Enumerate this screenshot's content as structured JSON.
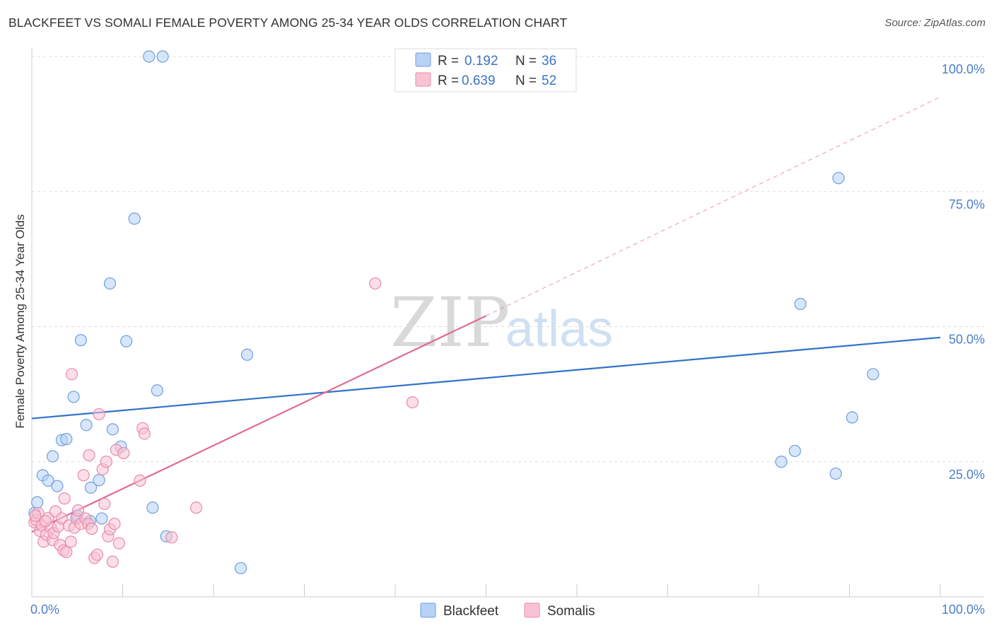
{
  "header": {
    "title": "BLACKFEET VS SOMALI FEMALE POVERTY AMONG 25-34 YEAR OLDS CORRELATION CHART",
    "source": "Source: ZipAtlas.com"
  },
  "watermark": {
    "zip": "ZIP",
    "atlas": "atlas"
  },
  "colors": {
    "blackfeet_fill": "#b7d2f5",
    "blackfeet_stroke": "#6f9fdc",
    "blackfeet_line": "#2f72c9",
    "somalis_fill": "#f7c3d3",
    "somalis_stroke": "#e98aa8",
    "somalis_line": "#e06a92",
    "grid": "#dddddd",
    "axis_text": "#4a7fc9"
  },
  "legend": {
    "rows": [
      {
        "r_label": "R =",
        "r_value": "0.192",
        "n_label": "N =",
        "n_value": "36"
      },
      {
        "r_label": "R =",
        "r_value": "0.639",
        "n_label": "N =",
        "n_value": "52"
      }
    ]
  },
  "chart_data": {
    "type": "scatter",
    "title": "BLACKFEET VS SOMALI FEMALE POVERTY AMONG 25-34 YEAR OLDS CORRELATION CHART",
    "xlabel": "",
    "ylabel": "Female Poverty Among 25-34 Year Olds",
    "xlim": [
      0,
      100
    ],
    "ylim": [
      0,
      100
    ],
    "x_tick_labels": [
      "0.0%",
      "100.0%"
    ],
    "y_ticks": [
      {
        "value": 25,
        "label": "25.0%"
      },
      {
        "value": 50,
        "label": "50.0%"
      },
      {
        "value": 75,
        "label": "75.0%"
      },
      {
        "value": 100,
        "label": "100.0%"
      }
    ],
    "series": [
      {
        "name": "Blackfeet",
        "R": 0.192,
        "N": 36,
        "trend": {
          "x0": 0,
          "y0": 33,
          "x1": 100,
          "y1": 48
        },
        "points": [
          [
            0.3,
            15.5
          ],
          [
            0.6,
            17.5
          ],
          [
            1.2,
            22.5
          ],
          [
            1.8,
            21.5
          ],
          [
            2.3,
            26
          ],
          [
            2.8,
            20.5
          ],
          [
            3.3,
            29
          ],
          [
            3.8,
            29.2
          ],
          [
            4.6,
            37
          ],
          [
            4.9,
            14.5
          ],
          [
            5.4,
            47.5
          ],
          [
            6.0,
            31.8
          ],
          [
            6.5,
            20.2
          ],
          [
            6.4,
            14.0
          ],
          [
            7.4,
            21.6
          ],
          [
            7.7,
            14.5
          ],
          [
            8.6,
            58
          ],
          [
            8.9,
            31
          ],
          [
            9.8,
            27.8
          ],
          [
            10.4,
            47.3
          ],
          [
            11.3,
            70
          ],
          [
            12.9,
            100
          ],
          [
            14.4,
            100
          ],
          [
            13.3,
            16.5
          ],
          [
            13.8,
            38.2
          ],
          [
            14.8,
            11.2
          ],
          [
            23.0,
            5.3
          ],
          [
            23.7,
            44.8
          ],
          [
            82.5,
            25
          ],
          [
            84.0,
            27
          ],
          [
            84.6,
            54.2
          ],
          [
            88.5,
            22.8
          ],
          [
            88.8,
            77.5
          ],
          [
            90.3,
            33.2
          ],
          [
            92.6,
            41.2
          ],
          [
            5.0,
            15.0
          ]
        ]
      },
      {
        "name": "Somalis",
        "R": 0.639,
        "N": 52,
        "trend": {
          "x0": 0,
          "y0": 12,
          "x1": 50,
          "y1": 52
        },
        "trend_extension": {
          "x0": 50,
          "y0": 52,
          "x1": 100,
          "y1": 92.5
        },
        "points": [
          [
            0.3,
            13.8
          ],
          [
            0.5,
            14.2
          ],
          [
            0.7,
            15.5
          ],
          [
            0.9,
            12.2
          ],
          [
            1.1,
            13.2
          ],
          [
            1.3,
            10.2
          ],
          [
            1.6,
            11.5
          ],
          [
            1.8,
            14.6
          ],
          [
            2.1,
            12.8
          ],
          [
            2.3,
            10.5
          ],
          [
            2.4,
            11.8
          ],
          [
            2.6,
            15.8
          ],
          [
            2.9,
            13.0
          ],
          [
            3.1,
            9.6
          ],
          [
            3.3,
            14.5
          ],
          [
            3.5,
            8.6
          ],
          [
            3.6,
            18.2
          ],
          [
            3.8,
            8.3
          ],
          [
            4.1,
            13.2
          ],
          [
            4.3,
            10.2
          ],
          [
            4.4,
            41.2
          ],
          [
            4.7,
            12.8
          ],
          [
            4.9,
            14.5
          ],
          [
            5.1,
            16.0
          ],
          [
            5.4,
            13.5
          ],
          [
            5.7,
            22.5
          ],
          [
            5.9,
            14.5
          ],
          [
            6.2,
            13.5
          ],
          [
            6.3,
            26.2
          ],
          [
            6.6,
            12.6
          ],
          [
            6.9,
            7.2
          ],
          [
            7.2,
            7.8
          ],
          [
            7.4,
            33.8
          ],
          [
            7.8,
            23.6
          ],
          [
            8.0,
            17.2
          ],
          [
            8.2,
            25.0
          ],
          [
            8.4,
            11.2
          ],
          [
            8.6,
            12.5
          ],
          [
            8.9,
            6.5
          ],
          [
            9.1,
            13.5
          ],
          [
            9.3,
            27.2
          ],
          [
            9.6,
            9.9
          ],
          [
            10.1,
            26.6
          ],
          [
            11.9,
            21.5
          ],
          [
            12.2,
            31.2
          ],
          [
            12.4,
            30.2
          ],
          [
            15.4,
            11.0
          ],
          [
            18.1,
            16.5
          ],
          [
            37.8,
            58
          ],
          [
            41.9,
            36
          ],
          [
            0.4,
            15.0
          ],
          [
            1.5,
            14.0
          ]
        ]
      }
    ]
  },
  "bottom_legend": {
    "items": [
      {
        "label": "Blackfeet"
      },
      {
        "label": "Somalis"
      }
    ]
  }
}
